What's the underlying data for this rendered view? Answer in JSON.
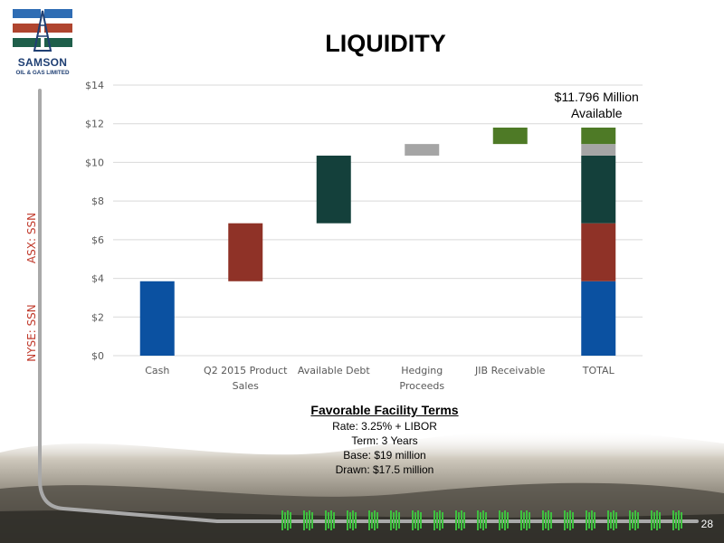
{
  "slide": {
    "title": "LIQUIDITY",
    "page_number": "28"
  },
  "logo": {
    "name": "SAMSON",
    "subtitle": "OIL & GAS LIMITED",
    "colors": {
      "blue": "#2f6db4",
      "red": "#b0452f",
      "green": "#1f5f4a"
    }
  },
  "tickers": {
    "asx": "ASX: SSN",
    "nyse": "NYSE: SSN"
  },
  "chart_data": {
    "type": "bar",
    "variant": "waterfall",
    "categories": [
      "Cash",
      "Q2 2015 Product Sales",
      "Available Debt",
      "Hedging Proceeds",
      "JIB Receivable",
      "TOTAL"
    ],
    "tick_labels": [
      [
        "Cash"
      ],
      [
        "Q2 2015 Product",
        "Sales"
      ],
      [
        "Available Debt"
      ],
      [
        "Hedging",
        "Proceeds"
      ],
      [
        "JIB Receivable"
      ],
      [
        "TOTAL"
      ]
    ],
    "steps": [
      {
        "category": "Cash",
        "value": 3.85,
        "color": "#0b51a1"
      },
      {
        "category": "Q2 2015 Product Sales",
        "value": 3.0,
        "color": "#8f3227"
      },
      {
        "category": "Available Debt",
        "value": 3.5,
        "color": "#14403b"
      },
      {
        "category": "Hedging Proceeds",
        "value": 0.6,
        "color": "#a5a5a5"
      },
      {
        "category": "JIB Receivable",
        "value": 0.85,
        "color": "#4e7a26"
      }
    ],
    "total_category": "TOTAL",
    "total": 11.796,
    "annotation": [
      "$11.796 Million",
      "Available"
    ],
    "y_ticks": [
      "$0",
      "$2",
      "$4",
      "$6",
      "$8",
      "$10",
      "$12",
      "$14"
    ],
    "ylim": [
      0,
      14
    ],
    "y_step": 2,
    "grid": true,
    "legend": "none"
  },
  "facility_terms": {
    "heading": "Favorable Facility Terms",
    "lines": [
      "Rate: 3.25% + LIBOR",
      "Term: 3 Years",
      "Base: $19 million",
      "Drawn: $17.5 million"
    ]
  }
}
